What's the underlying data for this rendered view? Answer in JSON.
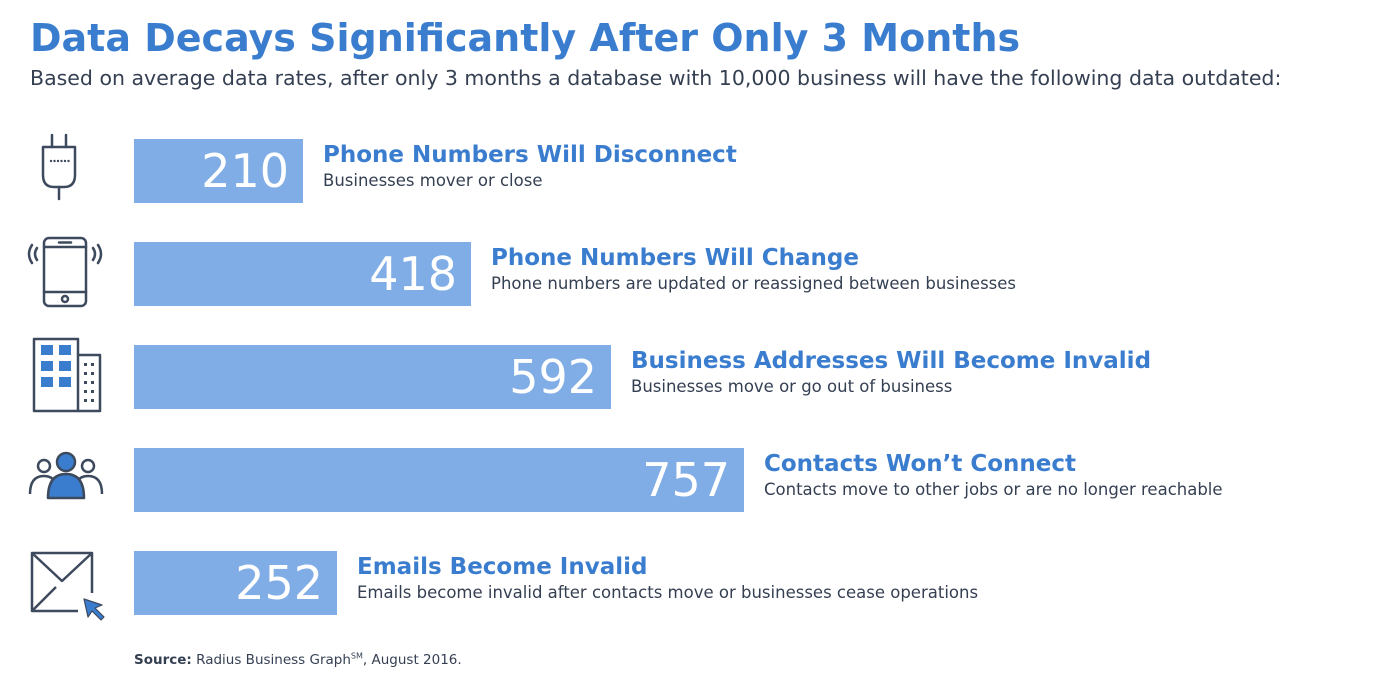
{
  "title": "Data Decays Significantly After Only 3 Months",
  "subtitle": "Based on average data rates, after only 3 months a database with 10,000 business will have the following data outdated:",
  "colors": {
    "title": "#3a7dcf",
    "bar": "#80ade6",
    "text": "#343f52",
    "icon_stroke": "#3d4a5e",
    "icon_fill": "#3a7dcf"
  },
  "chart_data": {
    "type": "bar",
    "orientation": "horizontal",
    "title": "Data Decays Significantly After Only 3 Months",
    "subtitle": "Based on average data rates, after only 3 months a database with 10,000 business will have the following data outdated:",
    "categories": [
      "Phone Numbers Will Disconnect",
      "Phone Numbers Will Change",
      "Business Addresses Will Become Invalid",
      "Contacts Won’t Connect",
      "Emails Become Invalid"
    ],
    "values": [
      210,
      418,
      592,
      757,
      252
    ],
    "xlim": [
      0,
      757
    ],
    "grid": false,
    "legend": "none"
  },
  "rows": [
    {
      "icon": "plug-icon",
      "value": "210",
      "label": "Phone Numbers Will Disconnect",
      "description": "Businesses mover or close"
    },
    {
      "icon": "mobile-phone-icon",
      "value": "418",
      "label": "Phone Numbers Will Change",
      "description": "Phone numbers are updated or reassigned between businesses"
    },
    {
      "icon": "office-building-icon",
      "value": "592",
      "label": "Business Addresses Will Become Invalid",
      "description": "Businesses move or go out of business"
    },
    {
      "icon": "contacts-group-icon",
      "value": "757",
      "label": "Contacts Won’t Connect",
      "description": "Contacts move to other jobs or are no longer reachable"
    },
    {
      "icon": "envelope-cursor-icon",
      "value": "252",
      "label": "Emails Become Invalid",
      "description": "Emails become invalid after contacts move or businesses cease operations"
    }
  ],
  "source": {
    "label": "Source:",
    "text": "Radius Business Graph",
    "superscript": "SM",
    "suffix": ", August 2016."
  }
}
